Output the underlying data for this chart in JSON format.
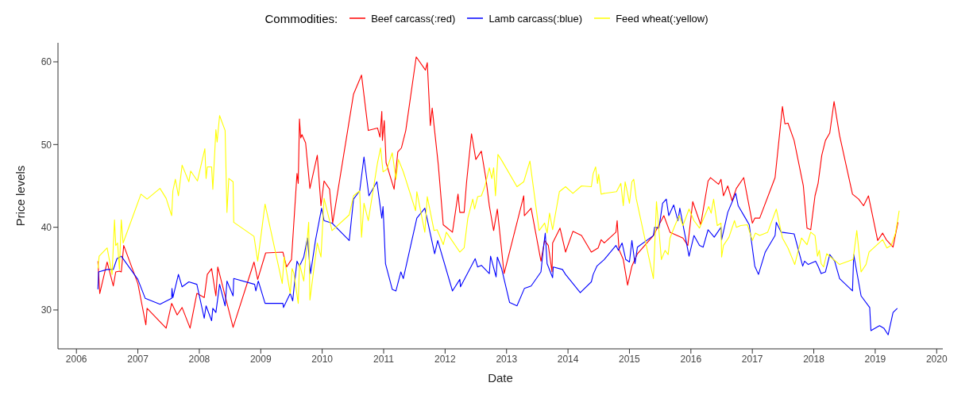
{
  "chart_data": {
    "type": "line",
    "xlabel": "Date",
    "ylabel": "Price levels",
    "legend_title": "Commodities:",
    "legend": "top",
    "grid": false,
    "marker": "none",
    "line_style": "solid",
    "xlim": [
      2005.7,
      2020.1
    ],
    "xticks": [
      2006,
      2007,
      2008,
      2009,
      2010,
      2011,
      2012,
      2013,
      2014,
      2015,
      2016,
      2017,
      2018,
      2019,
      2020
    ],
    "ylim": [
      25.3,
      62.3
    ],
    "yticks": [
      30,
      40,
      50,
      60
    ],
    "series": [
      {
        "name": "Beef carcass(:red)",
        "color": "#ff0000",
        "x": [
          2006.35,
          2006.38,
          2006.5,
          2006.6,
          2006.64,
          2006.7,
          2006.73,
          2006.77,
          2007.0,
          2007.13,
          2007.15,
          2007.46,
          2007.55,
          2007.57,
          2007.64,
          2007.72,
          2007.85,
          2007.96,
          2008.08,
          2008.13,
          2008.2,
          2008.27,
          2008.3,
          2008.55,
          2008.89,
          2008.95,
          2009.08,
          2009.36,
          2009.42,
          2009.5,
          2009.59,
          2009.61,
          2009.63,
          2009.65,
          2009.67,
          2009.73,
          2009.8,
          2009.92,
          2009.98,
          2010.03,
          2010.12,
          2010.17,
          2010.51,
          2010.64,
          2010.75,
          2010.9,
          2010.94,
          2010.97,
          2010.98,
          2011.01,
          2011.04,
          2011.17,
          2011.23,
          2011.29,
          2011.36,
          2011.53,
          2011.68,
          2011.71,
          2011.76,
          2011.79,
          2011.89,
          2011.97,
          2012.12,
          2012.21,
          2012.24,
          2012.31,
          2012.35,
          2012.43,
          2012.5,
          2012.59,
          2012.67,
          2012.72,
          2012.79,
          2012.85,
          2012.96,
          2013.28,
          2013.29,
          2013.4,
          2013.56,
          2013.62,
          2013.68,
          2013.74,
          2013.75,
          2013.87,
          2013.96,
          2014.08,
          2014.22,
          2014.38,
          2014.49,
          2014.54,
          2014.59,
          2014.78,
          2014.8,
          2014.83,
          2014.9,
          2014.97,
          2015.04,
          2015.13,
          2015.39,
          2015.56,
          2015.66,
          2015.87,
          2015.95,
          2016.03,
          2016.16,
          2016.28,
          2016.32,
          2016.45,
          2016.49,
          2016.53,
          2016.6,
          2016.67,
          2016.74,
          2016.86,
          2017.0,
          2017.04,
          2017.12,
          2017.37,
          2017.49,
          2017.53,
          2017.58,
          2017.68,
          2017.83,
          2017.89,
          2017.95,
          2018.02,
          2018.07,
          2018.13,
          2018.19,
          2018.26,
          2018.33,
          2018.42,
          2018.63,
          2018.73,
          2018.81,
          2018.89,
          2019.04,
          2019.12,
          2019.18,
          2019.29,
          2019.37
        ],
        "values": [
          35.9,
          32.0,
          35.8,
          32.9,
          34.6,
          34.7,
          34.6,
          37.8,
          33.2,
          28.2,
          30.2,
          27.8,
          30.8,
          30.5,
          29.4,
          30.3,
          27.8,
          32.0,
          31.5,
          34.3,
          35.0,
          31.7,
          35.2,
          27.9,
          35.8,
          33.7,
          36.9,
          37.0,
          35.2,
          36.1,
          46.5,
          45.3,
          53.1,
          50.8,
          51.2,
          50.2,
          44.7,
          48.7,
          42.6,
          45.6,
          44.6,
          40.5,
          56.1,
          58.4,
          51.7,
          52.0,
          50.9,
          54.0,
          50.5,
          52.9,
          47.8,
          44.6,
          49.1,
          49.6,
          51.7,
          60.6,
          59.0,
          59.9,
          52.3,
          54.4,
          47.5,
          40.3,
          39.4,
          44.0,
          41.8,
          41.8,
          45.5,
          51.3,
          48.2,
          49.2,
          45.6,
          42.6,
          39.6,
          42.2,
          34.4,
          43.8,
          41.4,
          42.3,
          35.9,
          38.4,
          37.8,
          34.6,
          38.1,
          39.9,
          37.0,
          39.5,
          39.0,
          37.0,
          37.5,
          38.5,
          38.1,
          39.4,
          40.8,
          37.3,
          36.1,
          33.0,
          35.3,
          36.8,
          39.0,
          41.4,
          39.4,
          38.7,
          37.8,
          43.1,
          40.3,
          45.6,
          46.0,
          45.2,
          45.8,
          43.8,
          45.0,
          43.2,
          44.7,
          46.0,
          40.5,
          41.1,
          41.1,
          46.0,
          54.6,
          52.5,
          52.6,
          50.5,
          45.0,
          39.9,
          39.7,
          43.8,
          45.3,
          48.7,
          50.5,
          51.4,
          55.2,
          51.1,
          44.0,
          43.4,
          42.6,
          43.8,
          38.4,
          39.3,
          38.5,
          37.6,
          40.6
        ]
      },
      {
        "name": "Lamb carcass(:blue)",
        "color": "#0000ff",
        "x": [
          2006.35,
          2006.36,
          2006.5,
          2006.6,
          2006.66,
          2006.73,
          2007.0,
          2007.12,
          2007.36,
          2007.55,
          2007.555,
          2007.57,
          2007.66,
          2007.72,
          2007.83,
          2007.96,
          2008.08,
          2008.11,
          2008.2,
          2008.22,
          2008.27,
          2008.33,
          2008.42,
          2008.45,
          2008.55,
          2008.56,
          2008.9,
          2008.92,
          2008.96,
          2009.07,
          2009.36,
          2009.37,
          2009.48,
          2009.52,
          2009.54,
          2009.59,
          2009.63,
          2009.7,
          2009.76,
          2009.81,
          2009.89,
          2009.99,
          2010.03,
          2010.16,
          2010.44,
          2010.51,
          2010.61,
          2010.68,
          2010.76,
          2010.89,
          2010.97,
          2010.99,
          2011.03,
          2011.14,
          2011.2,
          2011.28,
          2011.32,
          2011.54,
          2011.67,
          2011.83,
          2011.88,
          2012.12,
          2012.24,
          2012.25,
          2012.49,
          2012.53,
          2012.59,
          2012.72,
          2012.74,
          2012.83,
          2012.85,
          2012.92,
          2013.05,
          2013.17,
          2013.29,
          2013.4,
          2013.56,
          2013.6,
          2013.63,
          2013.66,
          2013.75,
          2013.76,
          2013.91,
          2013.96,
          2014.2,
          2014.38,
          2014.41,
          2014.47,
          2014.59,
          2014.78,
          2014.82,
          2014.88,
          2014.94,
          2015.0,
          2015.04,
          2015.09,
          2015.13,
          2015.39,
          2015.41,
          2015.48,
          2015.54,
          2015.6,
          2015.64,
          2015.72,
          2015.79,
          2015.82,
          2015.97,
          2016.05,
          2016.14,
          2016.2,
          2016.28,
          2016.38,
          2016.49,
          2016.5,
          2016.6,
          2016.73,
          2016.77,
          2016.88,
          2016.95,
          2017.04,
          2017.1,
          2017.21,
          2017.37,
          2017.39,
          2017.47,
          2017.68,
          2017.82,
          2017.85,
          2017.91,
          2018.03,
          2018.07,
          2018.12,
          2018.19,
          2018.26,
          2018.34,
          2018.42,
          2018.63,
          2018.65,
          2018.77,
          2018.91,
          2018.93,
          2019.07,
          2019.14,
          2019.21,
          2019.29,
          2019.36
        ],
        "values": [
          32.5,
          34.6,
          34.9,
          34.9,
          36.2,
          36.5,
          33.7,
          31.4,
          30.7,
          31.4,
          32.6,
          31.5,
          34.3,
          32.8,
          33.4,
          33.1,
          29.0,
          30.5,
          28.7,
          30.2,
          29.7,
          33.1,
          30.5,
          33.5,
          31.7,
          33.8,
          33.1,
          32.3,
          33.5,
          30.8,
          30.8,
          30.3,
          32.0,
          31.1,
          32.6,
          35.9,
          35.3,
          36.4,
          38.7,
          34.4,
          38.4,
          42.3,
          40.8,
          40.5,
          38.4,
          43.4,
          44.4,
          48.5,
          43.8,
          45.5,
          41.1,
          42.5,
          35.6,
          32.5,
          32.3,
          34.6,
          33.8,
          41.1,
          42.3,
          36.8,
          38.4,
          32.3,
          33.7,
          32.8,
          36.2,
          35.2,
          35.4,
          34.4,
          36.5,
          34.0,
          36.4,
          35.0,
          30.9,
          30.5,
          32.6,
          32.9,
          34.6,
          37.5,
          39.3,
          35.6,
          33.9,
          35.2,
          34.9,
          34.3,
          32.1,
          33.4,
          34.3,
          35.3,
          36.1,
          37.8,
          37.2,
          38.1,
          36.1,
          35.8,
          38.4,
          35.6,
          37.6,
          39.0,
          40.0,
          39.9,
          42.9,
          43.4,
          41.4,
          42.7,
          40.8,
          42.3,
          36.5,
          39.0,
          37.8,
          37.6,
          39.7,
          38.8,
          40.0,
          38.5,
          41.8,
          44.1,
          42.6,
          41.2,
          40.3,
          35.3,
          34.3,
          37.0,
          39.0,
          40.6,
          39.4,
          39.2,
          35.3,
          35.9,
          35.5,
          35.9,
          35.3,
          34.4,
          34.6,
          36.7,
          35.9,
          33.8,
          32.3,
          36.7,
          31.7,
          30.3,
          27.5,
          28.1,
          27.8,
          27.0,
          29.7,
          30.2
        ]
      },
      {
        "name": "Feed wheat(:yellow)",
        "color": "#ffff00",
        "x": [
          2006.35,
          2006.37,
          2006.5,
          2006.58,
          2006.62,
          2006.64,
          2006.67,
          2006.7,
          2006.73,
          2006.76,
          2007.05,
          2007.15,
          2007.36,
          2007.46,
          2007.55,
          2007.57,
          2007.61,
          2007.66,
          2007.72,
          2007.83,
          2007.86,
          2007.97,
          2008.09,
          2008.11,
          2008.13,
          2008.2,
          2008.22,
          2008.27,
          2008.29,
          2008.33,
          2008.42,
          2008.45,
          2008.48,
          2008.55,
          2008.56,
          2008.89,
          2008.95,
          2009.07,
          2009.35,
          2009.38,
          2009.48,
          2009.51,
          2009.54,
          2009.61,
          2009.63,
          2009.7,
          2009.78,
          2009.8,
          2009.87,
          2009.92,
          2009.98,
          2010.03,
          2010.16,
          2010.44,
          2010.51,
          2010.61,
          2010.64,
          2010.68,
          2010.75,
          2010.9,
          2010.95,
          2010.99,
          2011.05,
          2011.14,
          2011.2,
          2011.24,
          2011.32,
          2011.52,
          2011.54,
          2011.67,
          2011.71,
          2011.82,
          2011.87,
          2011.97,
          2012.02,
          2012.24,
          2012.31,
          2012.37,
          2012.45,
          2012.48,
          2012.53,
          2012.59,
          2012.65,
          2012.72,
          2012.76,
          2012.79,
          2012.82,
          2012.86,
          2012.92,
          2013.17,
          2013.28,
          2013.38,
          2013.53,
          2013.62,
          2013.66,
          2013.7,
          2013.75,
          2013.86,
          2013.96,
          2014.08,
          2014.22,
          2014.38,
          2014.41,
          2014.45,
          2014.48,
          2014.5,
          2014.54,
          2014.59,
          2014.79,
          2014.86,
          2014.9,
          2014.93,
          2014.97,
          2015.0,
          2015.04,
          2015.07,
          2015.11,
          2015.39,
          2015.44,
          2015.52,
          2015.58,
          2015.63,
          2015.66,
          2015.74,
          2015.81,
          2015.87,
          2015.97,
          2016.05,
          2016.14,
          2016.29,
          2016.33,
          2016.37,
          2016.43,
          2016.49,
          2016.5,
          2016.53,
          2016.62,
          2016.71,
          2016.74,
          2016.81,
          2016.92,
          2017.0,
          2017.05,
          2017.12,
          2017.25,
          2017.39,
          2017.49,
          2017.58,
          2017.69,
          2017.8,
          2017.89,
          2017.95,
          2018.02,
          2018.06,
          2018.09,
          2018.12,
          2018.16,
          2018.21,
          2018.42,
          2018.64,
          2018.7,
          2018.77,
          2018.85,
          2018.9,
          2019.12,
          2019.19,
          2019.26,
          2019.33,
          2019.39
        ],
        "values": [
          35.0,
          36.5,
          37.5,
          34.3,
          40.9,
          37.8,
          38.1,
          34.9,
          40.9,
          38.1,
          44.0,
          43.4,
          44.7,
          43.5,
          41.4,
          44.4,
          45.8,
          43.8,
          47.5,
          45.5,
          46.8,
          45.6,
          49.5,
          45.9,
          47.3,
          47.3,
          44.6,
          51.8,
          50.3,
          53.5,
          51.7,
          41.8,
          45.9,
          45.5,
          40.6,
          38.9,
          35.9,
          42.8,
          33.2,
          36.4,
          32.0,
          35.0,
          34.4,
          30.8,
          35.6,
          33.5,
          40.6,
          31.2,
          35.3,
          38.1,
          36.4,
          43.5,
          39.6,
          41.5,
          43.8,
          44.4,
          38.8,
          42.9,
          40.8,
          47.8,
          49.6,
          46.7,
          47.0,
          49.0,
          45.8,
          48.2,
          46.7,
          42.0,
          44.3,
          39.4,
          43.7,
          39.6,
          39.7,
          37.9,
          39.4,
          37.0,
          37.5,
          41.1,
          43.4,
          42.2,
          43.7,
          43.8,
          45.0,
          47.2,
          45.9,
          47.2,
          43.8,
          48.8,
          48.1,
          44.9,
          45.5,
          48.0,
          39.6,
          40.5,
          39.3,
          41.7,
          39.7,
          44.3,
          44.9,
          44.1,
          45.0,
          44.9,
          46.5,
          47.3,
          45.3,
          46.4,
          44.0,
          44.1,
          44.3,
          45.3,
          42.6,
          45.5,
          44.1,
          42.9,
          45.5,
          45.8,
          43.5,
          33.8,
          43.1,
          36.1,
          37.2,
          36.7,
          38.7,
          40.2,
          41.4,
          40.2,
          42.2,
          40.8,
          39.9,
          42.5,
          41.7,
          43.4,
          40.2,
          40.5,
          36.4,
          37.8,
          38.8,
          40.8,
          40.0,
          40.2,
          40.3,
          38.4,
          39.3,
          39.0,
          39.4,
          42.2,
          38.7,
          37.5,
          35.5,
          38.7,
          37.9,
          39.4,
          39.0,
          36.5,
          37.2,
          35.6,
          35.2,
          36.8,
          35.5,
          36.1,
          39.6,
          34.6,
          35.5,
          37.0,
          38.5,
          37.5,
          37.8,
          39.3,
          42.0
        ]
      }
    ]
  }
}
